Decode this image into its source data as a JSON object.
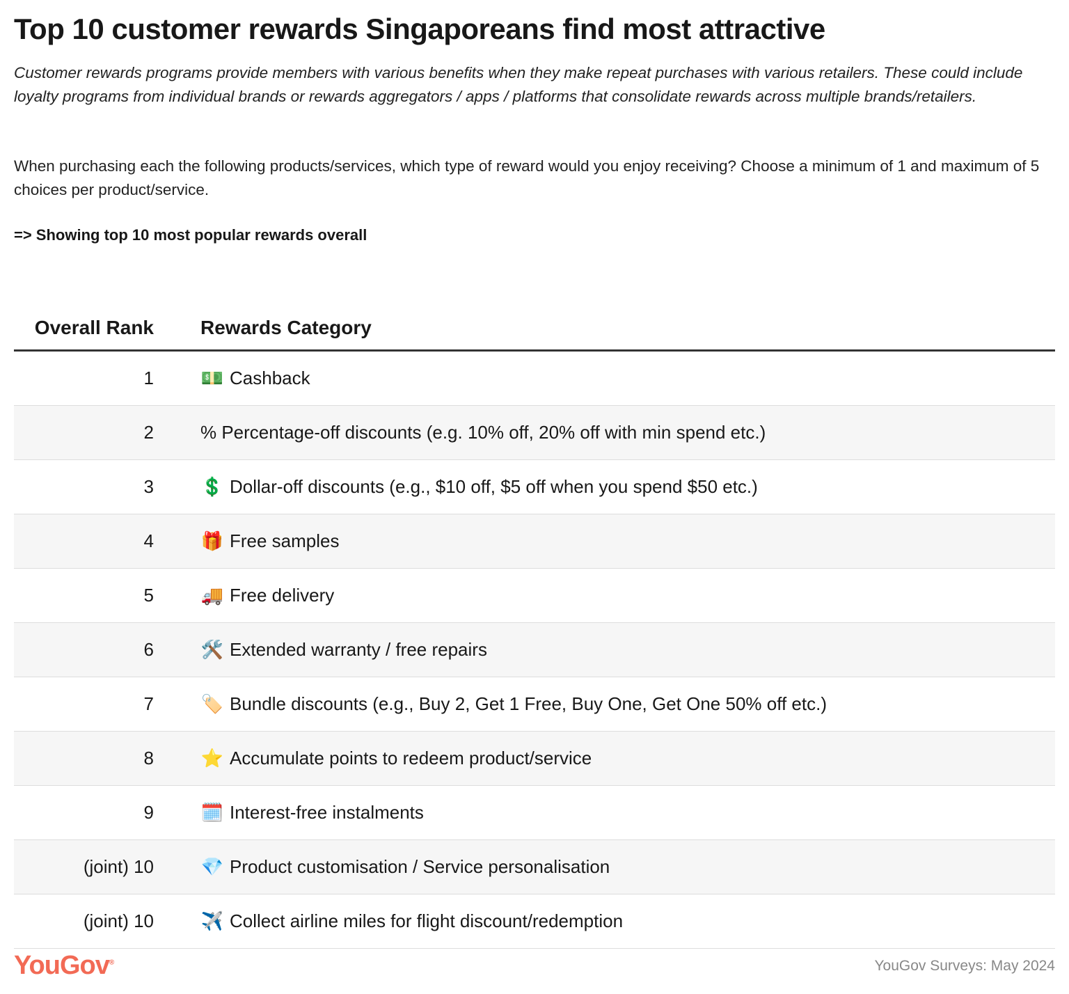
{
  "title": "Top 10 customer rewards Singaporeans find most attractive",
  "description": "Customer rewards programs provide members with various benefits when they make repeat purchases with various retailers. These could include loyalty programs from individual brands or rewards aggregators / apps / platforms that consolidate rewards across multiple brands/retailers.",
  "question": "When purchasing each the following products/services, which type of reward would you enjoy receiving? Choose a minimum of 1 and maximum of 5 choices per product/service.",
  "note": "=> Showing top 10 most popular rewards overall",
  "chart_data": {
    "type": "table",
    "columns": [
      "Overall Rank",
      "Rewards Category"
    ],
    "rows": [
      {
        "rank": "1",
        "icon": "💵",
        "icon_name": "banknote-icon",
        "category": "Cashback"
      },
      {
        "rank": "2",
        "icon": "",
        "icon_name": "",
        "category": "% Percentage-off discounts (e.g. 10% off, 20% off with min spend etc.)"
      },
      {
        "rank": "3",
        "icon": "💲",
        "icon_name": "dollar-sign-icon",
        "category": "Dollar-off discounts (e.g., $10 off, $5 off when you spend $50 etc.)"
      },
      {
        "rank": "4",
        "icon": "🎁",
        "icon_name": "gift-icon",
        "category": "Free samples"
      },
      {
        "rank": "5",
        "icon": "🚚",
        "icon_name": "delivery-truck-icon",
        "category": "Free delivery"
      },
      {
        "rank": "6",
        "icon": "🛠️",
        "icon_name": "tools-icon",
        "category": "Extended warranty / free repairs"
      },
      {
        "rank": "7",
        "icon": "🏷️",
        "icon_name": "tag-icon",
        "category": "Bundle discounts (e.g., Buy 2, Get 1 Free, Buy One, Get One 50% off etc.)"
      },
      {
        "rank": "8",
        "icon": "⭐",
        "icon_name": "star-icon",
        "category": "Accumulate points to redeem product/service"
      },
      {
        "rank": "9",
        "icon": "🗓️",
        "icon_name": "calendar-icon",
        "category": "Interest-free instalments"
      },
      {
        "rank": "(joint) 10",
        "icon": "💎",
        "icon_name": "gem-icon",
        "category": "Product customisation / Service personalisation"
      },
      {
        "rank": "(joint) 10",
        "icon": "✈️",
        "icon_name": "airplane-icon",
        "category": "Collect airline miles for flight discount/redemption"
      }
    ]
  },
  "footer": {
    "logo": "YouGov",
    "source": "YouGov Surveys: May 2024"
  },
  "colors": {
    "brand": "#f26a55",
    "row_alt": "#f6f6f6",
    "header_rule": "#333333"
  }
}
